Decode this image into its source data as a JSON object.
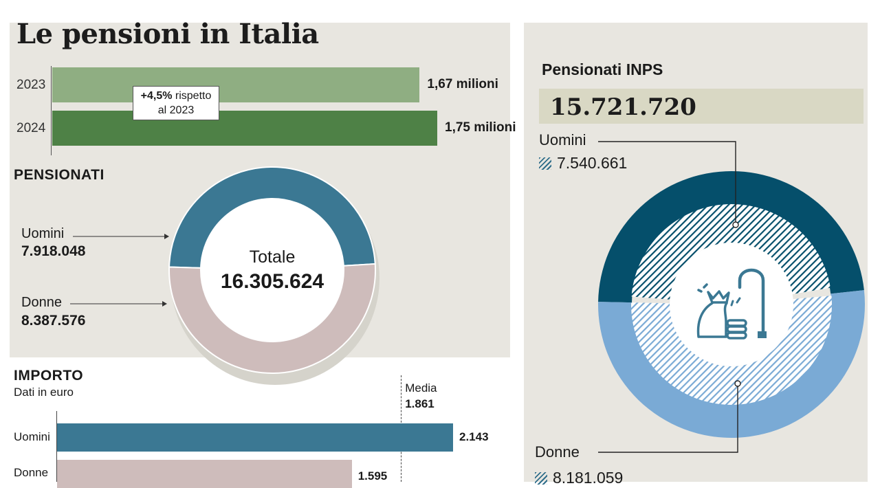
{
  "title": "Le pensioni in Italia",
  "growth": {
    "callout_pct": "+4,5%",
    "callout_rest": "rispetto",
    "callout_line2": "al 2023",
    "rows": [
      {
        "year": "2023",
        "value": 1.67,
        "label": "1,67 milioni",
        "color": "#8fae82"
      },
      {
        "year": "2024",
        "value": 1.75,
        "label": "1,75 milioni",
        "color": "#4e8146"
      }
    ]
  },
  "pensionati": {
    "heading": "PENSIONATI",
    "total_label": "Totale",
    "total_value": "16.305.624",
    "uomini_label": "Uomini",
    "uomini_value": "7.918.048",
    "donne_label": "Donne",
    "donne_value": "8.387.576",
    "colors": {
      "uomini": "#3b7893",
      "donne": "#cebcbb"
    }
  },
  "importo": {
    "heading": "IMPORTO",
    "subheading": "Dati in euro",
    "media_label": "Media",
    "media_value": "1.861",
    "rows": [
      {
        "label": "Uomini",
        "value": 2143,
        "display": "2.143",
        "color": "#3b7893"
      },
      {
        "label": "Donne",
        "value": 1595,
        "display": "1.595",
        "color": "#cebcbb"
      }
    ]
  },
  "inps": {
    "heading": "Pensionati INPS",
    "total": "15.721.720",
    "uomini_label": "Uomini",
    "uomini_value": "7.540.661",
    "donne_label": "Donne",
    "donne_value": "8.181.059",
    "colors": {
      "uomini": "#054f6b",
      "donne": "#7aaad5"
    }
  },
  "icons": [
    "money-bag-icon",
    "coins-icon",
    "walking-cane-icon"
  ],
  "chart_data": [
    {
      "type": "bar",
      "orientation": "horizontal",
      "categories": [
        "2023",
        "2024"
      ],
      "values": [
        1.67,
        1.75
      ],
      "annotations": [
        "+4,5% rispetto al 2023"
      ]
    },
    {
      "type": "pie",
      "style": "donut",
      "title": "PENSIONATI",
      "categories": [
        "Uomini",
        "Donne"
      ],
      "values": [
        7918048,
        8387576
      ],
      "total": 16305624
    },
    {
      "type": "bar",
      "orientation": "horizontal",
      "title": "IMPORTO",
      "subtitle": "Dati in euro",
      "categories": [
        "Uomini",
        "Donne"
      ],
      "values": [
        2143,
        1595
      ],
      "reference_line": {
        "label": "Media",
        "value": 1861
      }
    },
    {
      "type": "pie",
      "style": "donut",
      "title": "Pensionati INPS",
      "categories": [
        "Uomini",
        "Donne"
      ],
      "values": [
        7540661,
        8181059
      ],
      "total": 15721720
    }
  ]
}
